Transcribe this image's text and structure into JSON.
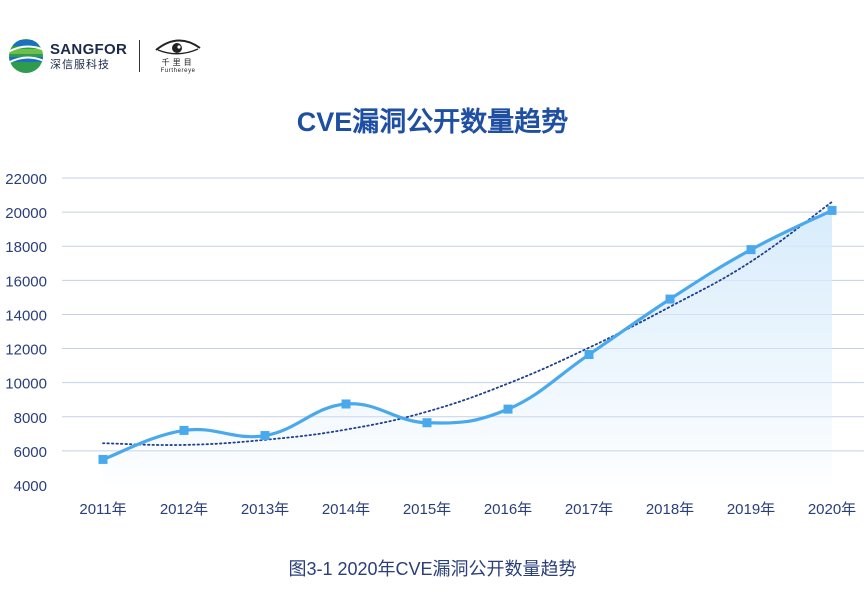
{
  "header": {
    "brand_name": "SANGFOR",
    "brand_sub": "深信服科技",
    "partner_cn": "千里目",
    "partner_en": "Furthereye"
  },
  "colors": {
    "title": "#1f4fa3",
    "line": "#4aa9ec",
    "trend": "#1f3f8f",
    "area": "#d6ebfb",
    "axis_text": "#2a3f7a",
    "grid": "#c7cfe6"
  },
  "chart_data": {
    "type": "line",
    "title": "CVE漏洞公开数量趋势",
    "categories": [
      "2011年",
      "2012年",
      "2013年",
      "2014年",
      "2015年",
      "2016年",
      "2017年",
      "2018年",
      "2019年",
      "2020年"
    ],
    "series": [
      {
        "values": [
          5500,
          7200,
          6900,
          8750,
          7650,
          8450,
          11650,
          14900,
          17800,
          20100
        ],
        "style": "smooth-area"
      }
    ],
    "trendline": {
      "type": "polynomial",
      "values": [
        6450,
        6350,
        6650,
        7250,
        8300,
        9950,
        12050,
        14450,
        17100,
        20600
      ]
    },
    "ylim": [
      4000,
      22000
    ],
    "yticks": [
      4000,
      6000,
      8000,
      10000,
      12000,
      14000,
      16000,
      18000,
      20000,
      22000
    ],
    "grid": true,
    "legend": "none"
  },
  "caption": "图3-1 2020年CVE漏洞公开数量趋势"
}
